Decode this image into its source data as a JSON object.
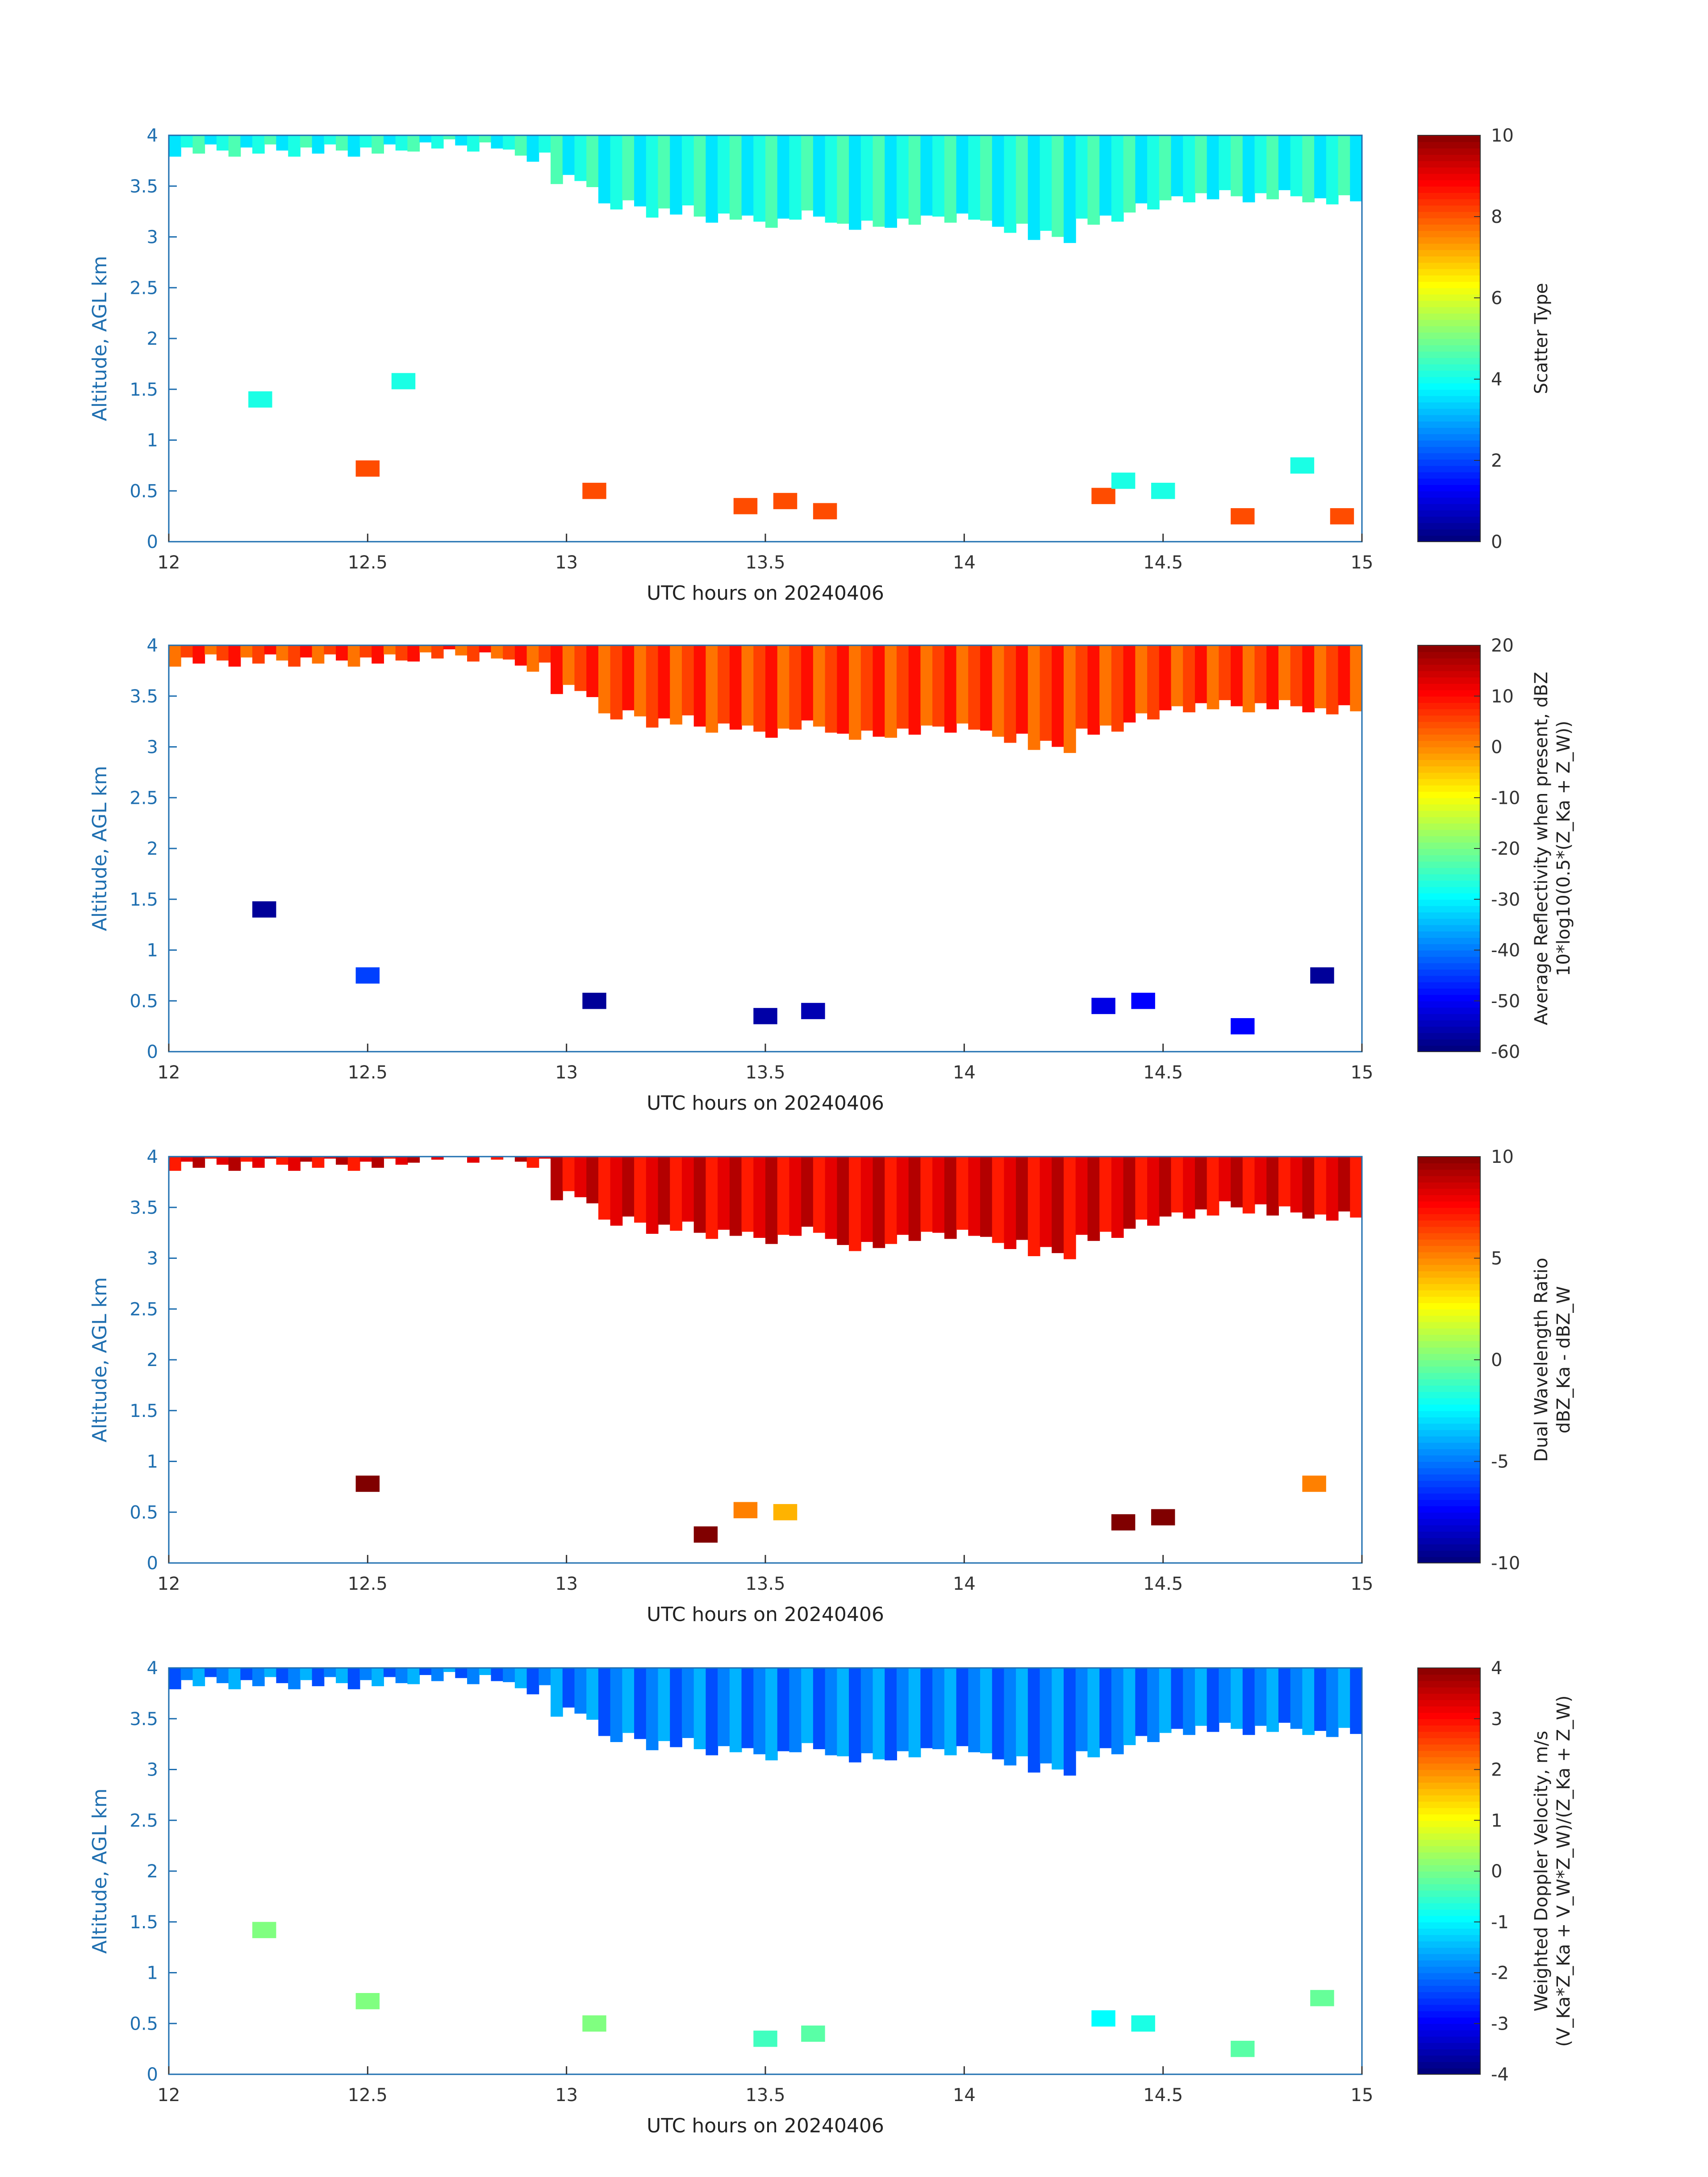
{
  "chart_data": [
    {
      "type": "heatmap",
      "xlabel": "UTC hours on 20240406",
      "ylabel": "Altitude, AGL km",
      "xlim": [
        12,
        15
      ],
      "ylim": [
        0,
        4
      ],
      "x_ticks": [
        "12",
        "12.5",
        "13",
        "13.5",
        "14",
        "14.5",
        "15"
      ],
      "y_ticks": [
        "0",
        "0.5",
        "1",
        "1.5",
        "2",
        "2.5",
        "3",
        "3.5",
        "4"
      ],
      "colorbar": {
        "label": "Scatter Type",
        "sublabel": "",
        "range": [
          0,
          10
        ],
        "ticks": [
          "0",
          "2",
          "4",
          "6",
          "8",
          "10"
        ]
      },
      "upper_layer": {
        "value": 4,
        "base_km": [
          3.85,
          3.85,
          3.85,
          3.85,
          3.85,
          3.9,
          3.9,
          3.8,
          3.55,
          3.3,
          3.25,
          3.2,
          3.15,
          3.2,
          3.1,
          3.15,
          3.2,
          3.1,
          3.0,
          3.15,
          3.3,
          3.4,
          3.4,
          3.4,
          3.35
        ]
      },
      "cells": [
        {
          "x": 12.23,
          "y": 1.4,
          "v": 4
        },
        {
          "x": 12.5,
          "y": 0.72,
          "v": 8
        },
        {
          "x": 12.59,
          "y": 1.58,
          "v": 4
        },
        {
          "x": 13.07,
          "y": 0.5,
          "v": 8
        },
        {
          "x": 13.45,
          "y": 0.35,
          "v": 8
        },
        {
          "x": 13.55,
          "y": 0.4,
          "v": 8
        },
        {
          "x": 13.65,
          "y": 0.3,
          "v": 8
        },
        {
          "x": 14.35,
          "y": 0.45,
          "v": 8
        },
        {
          "x": 14.4,
          "y": 0.6,
          "v": 4
        },
        {
          "x": 14.5,
          "y": 0.5,
          "v": 4
        },
        {
          "x": 14.7,
          "y": 0.25,
          "v": 8
        },
        {
          "x": 14.85,
          "y": 0.75,
          "v": 4
        },
        {
          "x": 14.95,
          "y": 0.25,
          "v": 8
        }
      ]
    },
    {
      "type": "heatmap",
      "xlabel": "UTC hours on 20240406",
      "ylabel": "Altitude, AGL km",
      "xlim": [
        12,
        15
      ],
      "ylim": [
        0,
        4
      ],
      "x_ticks": [
        "12",
        "12.5",
        "13",
        "13.5",
        "14",
        "14.5",
        "15"
      ],
      "y_ticks": [
        "0",
        "0.5",
        "1",
        "1.5",
        "2",
        "2.5",
        "3",
        "3.5",
        "4"
      ],
      "colorbar": {
        "label": "Average Reflectivity when present, dBZ",
        "sublabel": "10*log10(0.5*(Z_Ka + Z_W))",
        "range": [
          -60,
          20
        ],
        "ticks": [
          "-60",
          "-50",
          "-40",
          "-30",
          "-20",
          "-10",
          "0",
          "10",
          "20"
        ]
      },
      "upper_layer": {
        "value": 5,
        "base_km": [
          3.85,
          3.85,
          3.85,
          3.85,
          3.85,
          3.9,
          3.9,
          3.8,
          3.55,
          3.3,
          3.25,
          3.2,
          3.15,
          3.2,
          3.1,
          3.15,
          3.2,
          3.1,
          3.0,
          3.15,
          3.3,
          3.4,
          3.4,
          3.4,
          3.35
        ]
      },
      "cells": [
        {
          "x": 12.24,
          "y": 1.4,
          "v": -58
        },
        {
          "x": 12.5,
          "y": 0.75,
          "v": -45
        },
        {
          "x": 13.07,
          "y": 0.5,
          "v": -58
        },
        {
          "x": 13.5,
          "y": 0.35,
          "v": -57
        },
        {
          "x": 13.62,
          "y": 0.4,
          "v": -56
        },
        {
          "x": 14.35,
          "y": 0.45,
          "v": -52
        },
        {
          "x": 14.45,
          "y": 0.5,
          "v": -50
        },
        {
          "x": 14.7,
          "y": 0.25,
          "v": -50
        },
        {
          "x": 14.9,
          "y": 0.75,
          "v": -58
        }
      ]
    },
    {
      "type": "heatmap",
      "xlabel": "UTC hours on 20240406",
      "ylabel": "Altitude, AGL km",
      "xlim": [
        12,
        15
      ],
      "ylim": [
        0,
        4
      ],
      "x_ticks": [
        "12",
        "12.5",
        "13",
        "13.5",
        "14",
        "14.5",
        "15"
      ],
      "y_ticks": [
        "0",
        "0.5",
        "1",
        "1.5",
        "2",
        "2.5",
        "3",
        "3.5",
        "4"
      ],
      "colorbar": {
        "label": "Dual Wavelength Ratio",
        "sublabel": "dBZ_Ka - dBZ_W",
        "range": [
          -10,
          10
        ],
        "ticks": [
          "-10",
          "-5",
          "0",
          "5",
          "10"
        ]
      },
      "upper_layer": {
        "value": 8,
        "base_km": [
          3.92,
          3.92,
          3.92,
          3.92,
          3.92,
          4.0,
          4.0,
          3.95,
          3.6,
          3.35,
          3.3,
          3.25,
          3.2,
          3.25,
          3.1,
          3.2,
          3.25,
          3.15,
          3.05,
          3.2,
          3.35,
          3.45,
          3.5,
          3.45,
          3.4
        ]
      },
      "cells": [
        {
          "x": 12.5,
          "y": 0.78,
          "v": 10
        },
        {
          "x": 13.45,
          "y": 0.52,
          "v": 5
        },
        {
          "x": 13.55,
          "y": 0.5,
          "v": 4
        },
        {
          "x": 13.35,
          "y": 0.28,
          "v": 10
        },
        {
          "x": 14.4,
          "y": 0.4,
          "v": 10
        },
        {
          "x": 14.5,
          "y": 0.45,
          "v": 10
        },
        {
          "x": 14.88,
          "y": 0.78,
          "v": 5
        }
      ]
    },
    {
      "type": "heatmap",
      "xlabel": "UTC hours on 20240406",
      "ylabel": "Altitude, AGL km",
      "xlim": [
        12,
        15
      ],
      "ylim": [
        0,
        4
      ],
      "x_ticks": [
        "12",
        "12.5",
        "13",
        "13.5",
        "14",
        "14.5",
        "15"
      ],
      "y_ticks": [
        "0",
        "0.5",
        "1",
        "1.5",
        "2",
        "2.5",
        "3",
        "3.5",
        "4"
      ],
      "colorbar": {
        "label": "Weighted Doppler Velocity, m/s",
        "sublabel": "(V_Ka*Z_Ka + V_W*Z_W)/(Z_Ka + Z_W)",
        "range": [
          -4,
          4
        ],
        "ticks": [
          "-4",
          "-3",
          "-2",
          "-1",
          "0",
          "1",
          "2",
          "3",
          "4"
        ]
      },
      "upper_layer": {
        "value": -2,
        "base_km": [
          3.85,
          3.85,
          3.85,
          3.85,
          3.85,
          3.9,
          3.9,
          3.8,
          3.55,
          3.3,
          3.25,
          3.2,
          3.15,
          3.2,
          3.1,
          3.15,
          3.2,
          3.1,
          3.0,
          3.15,
          3.3,
          3.4,
          3.4,
          3.4,
          3.35
        ]
      },
      "cells": [
        {
          "x": 12.24,
          "y": 1.42,
          "v": 0
        },
        {
          "x": 12.5,
          "y": 0.72,
          "v": 0
        },
        {
          "x": 13.07,
          "y": 0.5,
          "v": 0
        },
        {
          "x": 13.5,
          "y": 0.35,
          "v": -0.5
        },
        {
          "x": 13.62,
          "y": 0.4,
          "v": -0.3
        },
        {
          "x": 14.35,
          "y": 0.55,
          "v": -1
        },
        {
          "x": 14.45,
          "y": 0.5,
          "v": -0.8
        },
        {
          "x": 14.7,
          "y": 0.25,
          "v": -0.3
        },
        {
          "x": 14.9,
          "y": 0.75,
          "v": -0.2
        }
      ]
    }
  ]
}
